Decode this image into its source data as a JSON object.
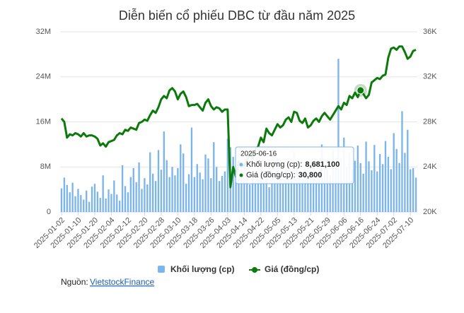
{
  "chart_data": {
    "type": "bar-line",
    "title": "Diễn biến cổ phiếu DBC từ đầu năm 2025",
    "categories": [
      "2025-01-02",
      null,
      null,
      null,
      null,
      null,
      "2025-01-10",
      null,
      null,
      null,
      null,
      null,
      "2025-01-20",
      null,
      null,
      null,
      null,
      null,
      "2025-02-04",
      null,
      null,
      null,
      null,
      null,
      "2025-02-12",
      null,
      null,
      null,
      null,
      null,
      "2025-02-20",
      null,
      null,
      null,
      null,
      null,
      "2025-02-28",
      null,
      null,
      null,
      null,
      null,
      "2025-03-10",
      null,
      null,
      null,
      null,
      null,
      "2025-03-18",
      null,
      null,
      null,
      null,
      null,
      "2025-03-26",
      null,
      null,
      null,
      null,
      null,
      "2025-04-03",
      null,
      null,
      null,
      null,
      null,
      "2025-04-14",
      null,
      null,
      null,
      null,
      null,
      "2025-04-22",
      null,
      null,
      null,
      null,
      null,
      "2025-05-05",
      null,
      null,
      null,
      null,
      null,
      "2025-05-13",
      null,
      null,
      null,
      null,
      null,
      "2025-05-21",
      null,
      null,
      null,
      null,
      null,
      "2025-05-29",
      null,
      null,
      null,
      null,
      null,
      "2025-06-06",
      null,
      null,
      null,
      null,
      null,
      "2025-06-16",
      null,
      null,
      null,
      null,
      null,
      "2025-06-24",
      null,
      null,
      null,
      null,
      null,
      "2025-07-02",
      null,
      null,
      null,
      null,
      null,
      "2025-07-10",
      null,
      null
    ],
    "series": [
      {
        "name": "Khối lượng (cp)",
        "type": "bar",
        "axis": "y",
        "color": "#7cb5ec",
        "values": [
          4200000,
          6100000,
          4800000,
          3500000,
          5200000,
          2800000,
          4100000,
          3000000,
          2200000,
          3800000,
          1800000,
          4500000,
          5000000,
          3600000,
          2500000,
          6500000,
          2400000,
          4000000,
          3200000,
          5600000,
          3100000,
          2000000,
          8300000,
          4600000,
          3500000,
          6200000,
          7800000,
          5300000,
          8800000,
          4100000,
          6000000,
          4900000,
          10600000,
          6800000,
          5500000,
          11000000,
          7500000,
          14300000,
          9200000,
          6200000,
          8000000,
          6500000,
          7800000,
          12000000,
          10400000,
          5000000,
          6700000,
          15000000,
          6200000,
          8500000,
          7000000,
          5800000,
          10200000,
          9500000,
          6000000,
          12400000,
          8000000,
          5500000,
          6400000,
          7200000,
          13000000,
          11500000,
          9800000,
          7300000,
          6000000,
          8200000,
          5600000,
          6800000,
          4900000,
          7000000,
          5200000,
          6100000,
          8800000,
          5300000,
          6600000,
          4400000,
          7200000,
          5800000,
          9600000,
          6300000,
          5000000,
          7400000,
          6900000,
          5500000,
          10800000,
          8300000,
          6700000,
          5900000,
          7800000,
          9000000,
          6200000,
          8600000,
          5700000,
          7100000,
          12000000,
          8400000,
          9300000,
          6500000,
          11200000,
          7800000,
          27200000,
          9500000,
          13200000,
          8000000,
          10500000,
          7600000,
          9100000,
          11800000,
          8681100,
          6800000,
          12500000,
          9000000,
          7400000,
          11900000,
          7200000,
          10300000,
          8500000,
          12600000,
          9800000,
          7600000,
          14000000,
          11200000,
          8700000,
          17900000,
          10500000,
          14600000,
          7600000,
          7800000,
          6100000
        ]
      },
      {
        "name": "Giá (đồng/cp)",
        "type": "line",
        "axis": "y2",
        "color": "#0b7a0b",
        "values": [
          28300,
          28000,
          26600,
          26900,
          26800,
          27000,
          26900,
          26700,
          27000,
          26700,
          26800,
          26800,
          26700,
          26500,
          25900,
          26100,
          25800,
          26200,
          26300,
          26400,
          26800,
          27000,
          26900,
          27300,
          27200,
          27500,
          27400,
          27300,
          27900,
          28000,
          28200,
          28100,
          28600,
          29000,
          28800,
          29300,
          30000,
          30300,
          30100,
          30800,
          31000,
          30700,
          30000,
          30500,
          30700,
          30200,
          29400,
          29500,
          29500,
          29600,
          29300,
          29000,
          29700,
          30000,
          29400,
          29100,
          29300,
          29200,
          28900,
          29100,
          29100,
          22200,
          24000,
          23100,
          24500,
          24000,
          24100,
          24600,
          25300,
          24800,
          25600,
          25800,
          26600,
          26200,
          27400,
          27000,
          26800,
          27300,
          27800,
          27500,
          27700,
          28200,
          28400,
          28000,
          28900,
          28800,
          28100,
          27900,
          28300,
          27500,
          27700,
          28100,
          28300,
          28000,
          28500,
          28800,
          28500,
          28200,
          28600,
          29000,
          29400,
          29100,
          29700,
          29500,
          30300,
          30100,
          30600,
          30200,
          30800,
          30500,
          30100,
          30400,
          31500,
          31700,
          31900,
          31800,
          32100,
          32200,
          33700,
          34500,
          34600,
          34400,
          34700,
          34700,
          34200,
          33600,
          33800,
          34300,
          34400
        ]
      }
    ],
    "ylim": [
      0,
      32000000
    ],
    "yticks": [
      {
        "value": 0,
        "label": "0"
      },
      {
        "value": 8000000,
        "label": "8M"
      },
      {
        "value": 16000000,
        "label": "16M"
      },
      {
        "value": 24000000,
        "label": "24M"
      },
      {
        "value": 32000000,
        "label": "32M"
      }
    ],
    "y2lim": [
      20000,
      36000
    ],
    "y2ticks": [
      {
        "value": 20000,
        "label": "20K"
      },
      {
        "value": 24000,
        "label": "24K"
      },
      {
        "value": 28000,
        "label": "28K"
      },
      {
        "value": 32000,
        "label": "32K"
      },
      {
        "value": 36000,
        "label": "36K"
      }
    ],
    "grid": true,
    "legend": "bottom",
    "tooltip": {
      "items": [
        {
          "label": "Khối lượng (cp):",
          "value": "8,681,100"
        },
        {
          "label": "Giá (đồng/cp):",
          "value": "30,800"
        }
      ]
    }
  },
  "source": {
    "label": "Nguồn:",
    "link": "VietstockFinance"
  }
}
